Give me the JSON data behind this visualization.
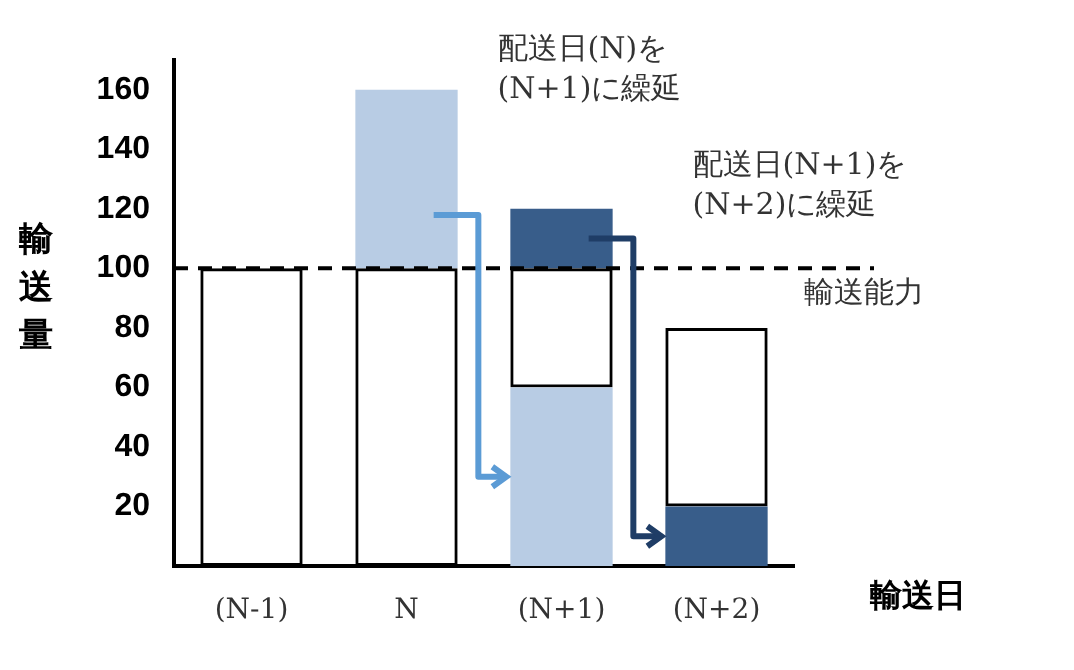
{
  "chart_data": {
    "type": "bar",
    "stacked": true,
    "ylabel": "輸送量",
    "xlabel": "輸送日",
    "categories": [
      "(N-1)",
      "N",
      "(N+1)",
      "(N+2)"
    ],
    "series": [
      {
        "color": "#b8cce4",
        "values": [
          null,
          null,
          60,
          null
        ]
      },
      {
        "color": "#385d8a",
        "values": [
          null,
          null,
          null,
          20
        ]
      },
      {
        "color": "#000000",
        "values": [
          100,
          100,
          40,
          60
        ]
      },
      {
        "color": "#b8cce4",
        "values": [
          null,
          60,
          null,
          null
        ]
      },
      {
        "color": "#385d8a",
        "values": [
          null,
          null,
          20,
          null
        ]
      }
    ],
    "ylim": [
      0,
      170
    ],
    "yticks": [
      20,
      40,
      60,
      80,
      100,
      120,
      140,
      160
    ],
    "grid": false,
    "legend": false,
    "ref_lines": [
      {
        "axis": "y",
        "value": 100,
        "label": "輸送能力",
        "line_style": "dashed",
        "color": "#000000"
      }
    ],
    "annotations": [
      "配送日(N)を\n(N+1)に繰延",
      "配送日(N+1)を\n(N+2)に繰延"
    ]
  }
}
